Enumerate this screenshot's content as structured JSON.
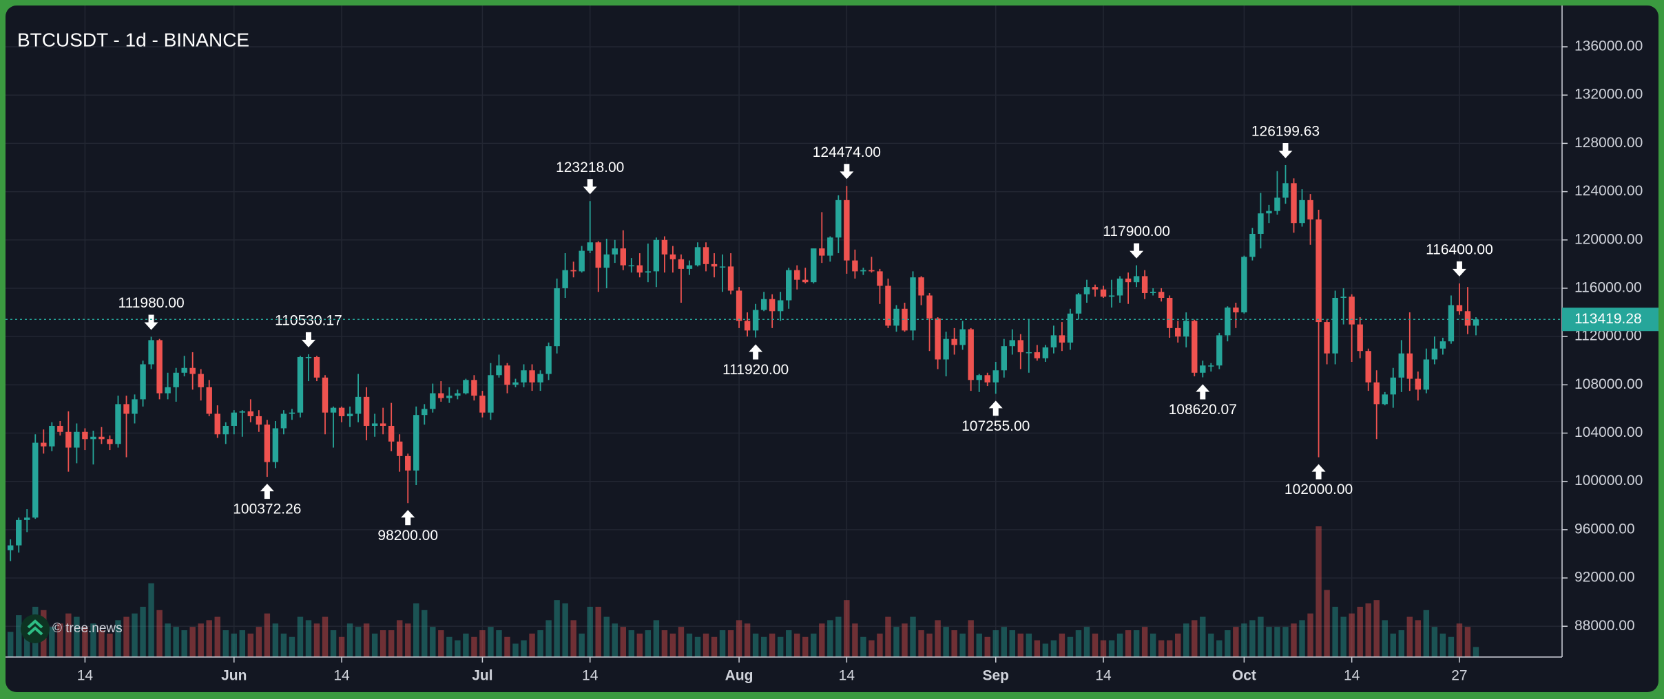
{
  "chart_data": {
    "type": "candlestick",
    "title": "BTCUSDT - 1d - BINANCE",
    "watermark": "© tree.news",
    "up_color": "#26a69a",
    "down_color": "#ef5350",
    "grid": true,
    "categories": [
      null,
      null,
      null,
      null,
      null,
      null,
      null,
      null,
      null,
      "14",
      null,
      null,
      null,
      null,
      null,
      null,
      null,
      null,
      null,
      null,
      null,
      null,
      null,
      null,
      null,
      null,
      null,
      "Jun",
      null,
      null,
      null,
      null,
      null,
      null,
      null,
      null,
      null,
      null,
      null,
      null,
      "14",
      null,
      null,
      null,
      null,
      null,
      null,
      null,
      null,
      null,
      null,
      null,
      null,
      null,
      null,
      null,
      null,
      "Jul",
      null,
      null,
      null,
      null,
      null,
      null,
      null,
      null,
      null,
      null,
      null,
      null,
      "14",
      null,
      null,
      null,
      null,
      null,
      null,
      null,
      null,
      null,
      null,
      null,
      null,
      null,
      null,
      null,
      null,
      null,
      "Aug",
      null,
      null,
      null,
      null,
      null,
      null,
      null,
      null,
      null,
      null,
      null,
      null,
      "14",
      null,
      null,
      null,
      null,
      null,
      null,
      null,
      null,
      null,
      null,
      null,
      null,
      null,
      null,
      null,
      null,
      null,
      "Sep",
      null,
      null,
      null,
      null,
      null,
      null,
      null,
      null,
      null,
      null,
      null,
      null,
      "14",
      null,
      null,
      null,
      null,
      null,
      null,
      null,
      null,
      null,
      null,
      null,
      null,
      null,
      null,
      null,
      null,
      "Oct",
      null,
      null,
      null,
      null,
      null,
      null,
      null,
      null,
      null,
      null,
      null,
      null,
      "14",
      null,
      null,
      null,
      null,
      null,
      null,
      null,
      null,
      null,
      null,
      null,
      null,
      "27",
      null,
      null
    ],
    "open": [
      94300,
      94700,
      96800,
      97000,
      103200,
      102900,
      104600,
      104100,
      102800,
      104100,
      103500,
      103700,
      103500,
      103100,
      106400,
      105600,
      106800,
      109700,
      111700,
      107300,
      107800,
      109000,
      109400,
      108900,
      107800,
      105600,
      103900,
      104600,
      105700,
      105800,
      105400,
      104700,
      101600,
      104400,
      105600,
      105700,
      110300,
      110300,
      108600,
      105700,
      106100,
      105400,
      105600,
      107000,
      104600,
      104800,
      104600,
      103300,
      102100,
      100900,
      105500,
      106000,
      107300,
      106900,
      107100,
      107300,
      108400,
      107100,
      105700,
      108800,
      109600,
      108000,
      108200,
      109200,
      108200,
      108900,
      111200,
      116000,
      117500,
      117400,
      119100,
      119800,
      117700,
      118800,
      119300,
      117900,
      117900,
      117300,
      117400,
      120000,
      118800,
      118400,
      117600,
      117900,
      119400,
      118000,
      117800,
      117800,
      115800,
      113300,
      112500,
      114200,
      115100,
      114100,
      115000,
      117500,
      116700,
      116500,
      119300,
      118700,
      120200,
      123300,
      118300,
      117400,
      117500,
      117400,
      116200,
      112900,
      114300,
      112500,
      116900,
      115400,
      113500,
      110100,
      111800,
      111300,
      112600,
      108400,
      108800,
      108200,
      109200,
      111200,
      111700,
      110700,
      110700,
      110200,
      111100,
      112100,
      111500,
      113900,
      115500,
      116100,
      115900,
      115300,
      115400,
      116800,
      116500,
      117000,
      115600,
      115700,
      115200,
      112700,
      112000,
      113300,
      109000,
      109600,
      109600,
      112100,
      114400,
      114000,
      118600,
      120500,
      122200,
      122400,
      123500,
      124700,
      121400,
      123300,
      121700,
      113200,
      110600,
      115200,
      115300,
      113000,
      110800,
      108200,
      106400,
      107200,
      108600,
      110600,
      108500,
      107600,
      110100,
      111000,
      111600,
      114600,
      114100,
      112900
    ],
    "high": [
      95200,
      97000,
      97700,
      103900,
      104300,
      104900,
      105000,
      105800,
      104800,
      104400,
      104200,
      104500,
      103800,
      107100,
      107100,
      107200,
      110000,
      111980,
      111800,
      109000,
      109400,
      110400,
      110700,
      109300,
      108400,
      106300,
      104900,
      105900,
      105900,
      106800,
      105900,
      105100,
      105000,
      105900,
      106000,
      110400,
      110530.17,
      110400,
      108800,
      106200,
      106200,
      106200,
      108900,
      107800,
      105600,
      106100,
      106500,
      103900,
      102300,
      106200,
      106400,
      108100,
      108300,
      107800,
      107600,
      108500,
      108800,
      107500,
      109800,
      110500,
      109800,
      108500,
      109700,
      109700,
      109200,
      111500,
      116800,
      118900,
      118200,
      119500,
      123218,
      119900,
      120100,
      120000,
      120800,
      118500,
      118900,
      119700,
      120200,
      120300,
      119500,
      118800,
      118300,
      119800,
      119800,
      118900,
      118800,
      118900,
      116100,
      114000,
      114700,
      115700,
      115500,
      115700,
      117700,
      117900,
      117700,
      119300,
      122300,
      120300,
      123700,
      124474,
      119200,
      117700,
      118600,
      117600,
      116800,
      114600,
      114800,
      117400,
      117000,
      115600,
      113600,
      112400,
      112700,
      113300,
      112700,
      108900,
      109000,
      109900,
      111800,
      112600,
      112200,
      113400,
      111300,
      111300,
      112900,
      113200,
      114300,
      115600,
      116700,
      116300,
      116200,
      116700,
      117000,
      117300,
      117900,
      117500,
      116000,
      116000,
      115400,
      113300,
      114000,
      113400,
      110000,
      109800,
      112300,
      114500,
      114800,
      118700,
      121000,
      123900,
      122900,
      125700,
      126199.63,
      125100,
      124200,
      123800,
      122500,
      113400,
      115800,
      116000,
      115500,
      113600,
      111000,
      109200,
      107400,
      109400,
      111700,
      114000,
      109100,
      111000,
      112000,
      111900,
      115400,
      116400,
      116100,
      113600
    ],
    "low": [
      93400,
      94100,
      95800,
      96900,
      102300,
      102500,
      103800,
      100800,
      101500,
      102600,
      101400,
      103100,
      102600,
      102800,
      102000,
      104800,
      106200,
      109300,
      106800,
      106800,
      106600,
      108700,
      107600,
      106700,
      105400,
      103600,
      103100,
      103900,
      103700,
      104900,
      104100,
      100372.26,
      101100,
      103900,
      105100,
      105300,
      108300,
      108300,
      103900,
      102800,
      104900,
      104500,
      104900,
      103400,
      103700,
      103900,
      102500,
      100800,
      98200,
      99700,
      104700,
      105700,
      106600,
      106500,
      106800,
      107200,
      106700,
      105300,
      105100,
      108600,
      107300,
      107800,
      107800,
      107500,
      107500,
      108400,
      110600,
      115200,
      116900,
      117300,
      118900,
      115700,
      116000,
      118100,
      117500,
      117300,
      116900,
      116500,
      116100,
      117300,
      117300,
      114800,
      117100,
      117800,
      117400,
      116900,
      115700,
      115500,
      112700,
      112000,
      111920,
      114100,
      112700,
      113300,
      114300,
      115900,
      116400,
      116400,
      118100,
      118200,
      118900,
      117200,
      116800,
      117100,
      117300,
      114700,
      112700,
      112400,
      112400,
      111700,
      114600,
      110800,
      109300,
      108700,
      110500,
      110900,
      107500,
      107400,
      107900,
      107255,
      108600,
      110500,
      109300,
      109000,
      110000,
      109900,
      110600,
      110800,
      110900,
      113400,
      114800,
      115300,
      115200,
      114400,
      114800,
      114700,
      116100,
      115100,
      115400,
      114900,
      111900,
      111500,
      111100,
      108700,
      108620.07,
      109100,
      109300,
      111600,
      112700,
      113900,
      118300,
      119300,
      121400,
      122100,
      123000,
      120600,
      121100,
      119600,
      102000,
      109700,
      109700,
      113000,
      109900,
      110200,
      107500,
      103500,
      106300,
      106100,
      107400,
      107500,
      106700,
      107300,
      109700,
      110500,
      111400,
      113800,
      112200,
      112100
    ],
    "close": [
      94700,
      96800,
      97000,
      103200,
      102900,
      104600,
      104100,
      102800,
      104100,
      103500,
      103700,
      103500,
      103100,
      106400,
      105600,
      106800,
      109700,
      111700,
      107300,
      107800,
      109000,
      109400,
      108900,
      107800,
      105600,
      103900,
      104600,
      105700,
      105800,
      105400,
      104700,
      101600,
      104400,
      105600,
      105700,
      110300,
      110300,
      108600,
      105700,
      106100,
      105400,
      105600,
      107000,
      104600,
      104800,
      104600,
      103300,
      102100,
      100900,
      105500,
      106000,
      107300,
      106900,
      107100,
      107300,
      108400,
      107100,
      105700,
      108800,
      109600,
      108000,
      108200,
      109200,
      108200,
      108900,
      111200,
      116000,
      117500,
      117400,
      119100,
      119800,
      117700,
      118800,
      119300,
      117900,
      117900,
      117300,
      117400,
      120000,
      118800,
      118400,
      117600,
      117900,
      119400,
      118000,
      117800,
      117800,
      115800,
      113300,
      112500,
      114200,
      115100,
      114100,
      115000,
      117500,
      116700,
      116500,
      119300,
      118700,
      120200,
      123300,
      118300,
      117400,
      117500,
      117400,
      116200,
      112900,
      114300,
      112500,
      116900,
      115400,
      113500,
      110100,
      111800,
      111300,
      112600,
      108400,
      108800,
      108200,
      109200,
      111200,
      111700,
      110700,
      110700,
      110200,
      111100,
      112100,
      111500,
      113900,
      115500,
      116100,
      115900,
      115300,
      115400,
      116800,
      116500,
      117000,
      115600,
      115700,
      115200,
      112700,
      112000,
      113300,
      109000,
      109600,
      109600,
      112100,
      114400,
      114000,
      118600,
      120500,
      122200,
      122400,
      123500,
      124700,
      121400,
      123300,
      121700,
      113200,
      110600,
      115200,
      115300,
      113000,
      110800,
      108200,
      106400,
      107200,
      108600,
      110600,
      108500,
      107600,
      110100,
      111000,
      111600,
      114600,
      114100,
      112900,
      113419.28
    ],
    "volume": [
      15,
      25,
      22,
      30,
      28,
      18,
      20,
      26,
      24,
      18,
      20,
      16,
      14,
      22,
      24,
      26,
      30,
      44,
      28,
      20,
      18,
      16,
      18,
      20,
      22,
      24,
      16,
      14,
      16,
      14,
      18,
      26,
      20,
      14,
      12,
      24,
      22,
      20,
      24,
      16,
      12,
      20,
      18,
      20,
      14,
      16,
      16,
      22,
      20,
      32,
      28,
      18,
      16,
      12,
      10,
      14,
      12,
      16,
      18,
      16,
      12,
      8,
      10,
      14,
      16,
      22,
      34,
      32,
      22,
      14,
      30,
      30,
      24,
      20,
      18,
      16,
      14,
      16,
      22,
      16,
      14,
      18,
      14,
      12,
      14,
      12,
      16,
      16,
      22,
      20,
      14,
      12,
      14,
      12,
      16,
      14,
      12,
      14,
      20,
      22,
      24,
      34,
      20,
      12,
      10,
      14,
      24,
      18,
      20,
      24,
      16,
      14,
      22,
      18,
      16,
      14,
      22,
      14,
      12,
      16,
      18,
      16,
      14,
      14,
      10,
      8,
      10,
      14,
      12,
      16,
      18,
      14,
      10,
      10,
      14,
      16,
      16,
      18,
      14,
      10,
      10,
      14,
      20,
      22,
      24,
      14,
      10,
      16,
      18,
      20,
      22,
      24,
      18,
      18,
      18,
      20,
      22,
      26,
      78,
      40,
      30,
      24,
      26,
      30,
      32,
      34,
      22,
      14,
      16,
      24,
      22,
      28,
      18,
      14,
      12,
      20,
      18,
      6
    ],
    "high_labels": [
      null,
      null,
      null,
      null,
      null,
      null,
      null,
      null,
      null,
      null,
      null,
      null,
      null,
      null,
      null,
      null,
      null,
      "111980.00",
      null,
      null,
      null,
      null,
      null,
      null,
      null,
      null,
      null,
      null,
      null,
      null,
      null,
      null,
      null,
      null,
      null,
      null,
      "110530.17",
      null,
      null,
      null,
      null,
      null,
      null,
      null,
      null,
      null,
      null,
      null,
      null,
      null,
      null,
      null,
      null,
      null,
      null,
      null,
      null,
      null,
      null,
      null,
      null,
      null,
      null,
      null,
      null,
      null,
      null,
      null,
      null,
      null,
      "123218.00",
      null,
      null,
      null,
      null,
      null,
      null,
      null,
      null,
      null,
      null,
      null,
      null,
      null,
      null,
      null,
      null,
      null,
      null,
      null,
      null,
      null,
      null,
      null,
      null,
      null,
      null,
      null,
      null,
      null,
      null,
      "124474.00",
      null,
      null,
      null,
      null,
      null,
      null,
      null,
      null,
      null,
      null,
      null,
      null,
      null,
      null,
      null,
      null,
      null,
      null,
      null,
      null,
      null,
      null,
      null,
      null,
      null,
      null,
      null,
      null,
      null,
      null,
      null,
      null,
      null,
      null,
      "117900.00",
      null,
      null,
      null,
      null,
      null,
      null,
      null,
      null,
      null,
      null,
      null,
      null,
      null,
      null,
      null,
      null,
      null,
      "126199.63",
      null,
      null,
      null,
      null,
      null,
      null,
      null,
      null,
      null,
      null,
      null,
      null,
      null,
      null,
      null,
      null,
      null,
      null,
      null,
      null,
      "116400.00",
      null,
      null
    ],
    "low_labels": [
      null,
      null,
      null,
      null,
      null,
      null,
      null,
      null,
      null,
      null,
      null,
      null,
      null,
      null,
      null,
      null,
      null,
      null,
      null,
      null,
      null,
      null,
      null,
      null,
      null,
      null,
      null,
      null,
      null,
      null,
      null,
      "100372.26",
      null,
      null,
      null,
      null,
      null,
      null,
      null,
      null,
      null,
      null,
      null,
      null,
      null,
      null,
      null,
      null,
      "98200.00",
      null,
      null,
      null,
      null,
      null,
      null,
      null,
      null,
      null,
      null,
      null,
      null,
      null,
      null,
      null,
      null,
      null,
      null,
      null,
      null,
      null,
      null,
      null,
      null,
      null,
      null,
      null,
      null,
      null,
      null,
      null,
      null,
      null,
      null,
      null,
      null,
      null,
      null,
      null,
      null,
      null,
      "111920.00",
      null,
      null,
      null,
      null,
      null,
      null,
      null,
      null,
      null,
      null,
      null,
      null,
      null,
      null,
      null,
      null,
      null,
      null,
      null,
      null,
      null,
      null,
      null,
      null,
      null,
      null,
      null,
      null,
      "107255.00",
      null,
      null,
      null,
      null,
      null,
      null,
      null,
      null,
      null,
      null,
      null,
      null,
      null,
      null,
      null,
      null,
      null,
      null,
      null,
      null,
      null,
      null,
      null,
      null,
      "108620.07",
      null,
      null,
      null,
      null,
      null,
      null,
      null,
      null,
      null,
      null,
      null,
      null,
      null,
      "102000.00",
      null,
      null,
      null,
      null,
      null,
      null,
      null,
      null,
      null,
      null,
      null,
      null,
      null,
      null,
      null,
      null,
      null,
      null,
      null
    ],
    "last_label": "113419.28",
    "xlim": [
      -0.6,
      187.4
    ],
    "ylim": [
      85450,
      139420
    ],
    "yticks": [
      {
        "value": 88000,
        "label": "88000.00"
      },
      {
        "value": 92000,
        "label": "92000.00"
      },
      {
        "value": 96000,
        "label": "96000.00"
      },
      {
        "value": 100000,
        "label": "100000.00"
      },
      {
        "value": 104000,
        "label": "104000.00"
      },
      {
        "value": 108000,
        "label": "108000.00"
      },
      {
        "value": 112000,
        "label": "112000.00"
      },
      {
        "value": 116000,
        "label": "116000.00"
      },
      {
        "value": 120000,
        "label": "120000.00"
      },
      {
        "value": 124000,
        "label": "124000.00"
      },
      {
        "value": 128000,
        "label": "128000.00"
      },
      {
        "value": 132000,
        "label": "132000.00"
      },
      {
        "value": 136000,
        "label": "136000.00"
      }
    ]
  }
}
